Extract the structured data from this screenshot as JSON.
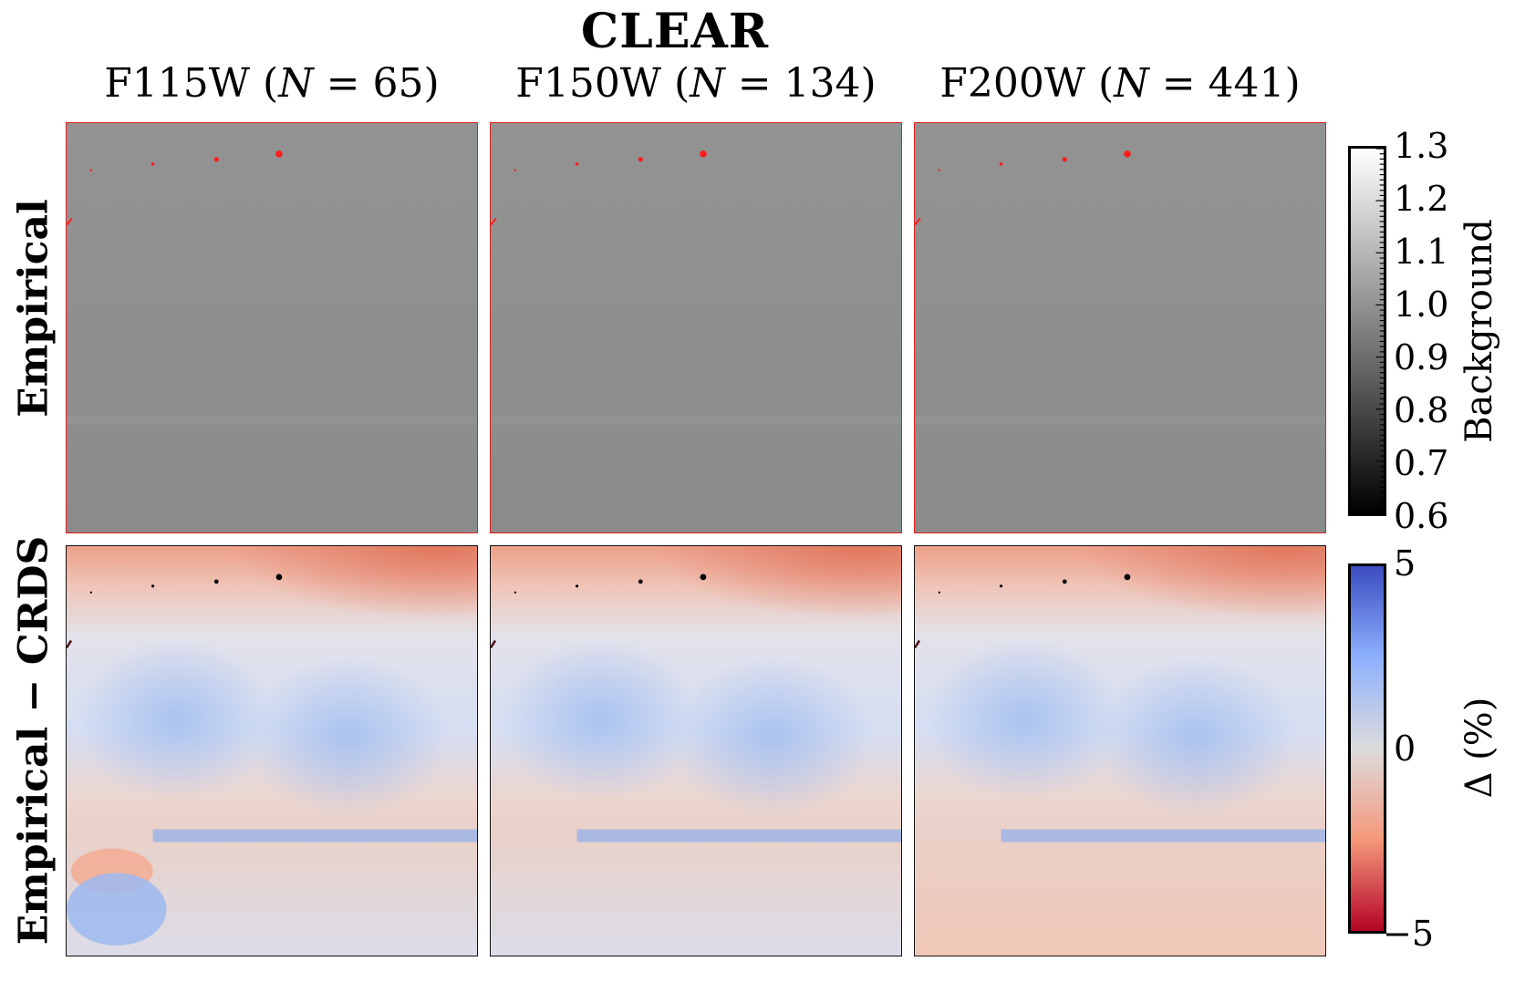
{
  "chart_data": {
    "type": "heatmap",
    "title": "CLEAR",
    "columns": [
      {
        "filter": "F115W",
        "n_label": "N",
        "n_value": "65"
      },
      {
        "filter": "F150W",
        "n_label": "N",
        "n_value": "134"
      },
      {
        "filter": "F200W",
        "n_label": "N",
        "n_value": "441"
      }
    ],
    "rows": [
      {
        "label": "Empirical",
        "colorbar": {
          "label": "Background",
          "cmap": "gray",
          "range": [
            0.6,
            1.3
          ],
          "ticks": [
            "1.3",
            "1.2",
            "1.1",
            "1.0",
            "0.9",
            "0.8",
            "0.7",
            "0.6"
          ]
        }
      },
      {
        "label": "Empirical − CRDS",
        "colorbar": {
          "label": "Δ (%)",
          "cmap": "coolwarm_r",
          "range": [
            -5,
            5
          ],
          "ticks": [
            "5",
            "0",
            "−5"
          ]
        }
      }
    ],
    "colors": {
      "background_panel": "#8e8e8e",
      "bad_pixel_top": "#ff1a1a",
      "bad_pixel_bottom": "#000000",
      "negative_diff": "#e46a4c",
      "positive_diff": "#a9c4ef",
      "neutral_diff": "#e6dede"
    }
  }
}
